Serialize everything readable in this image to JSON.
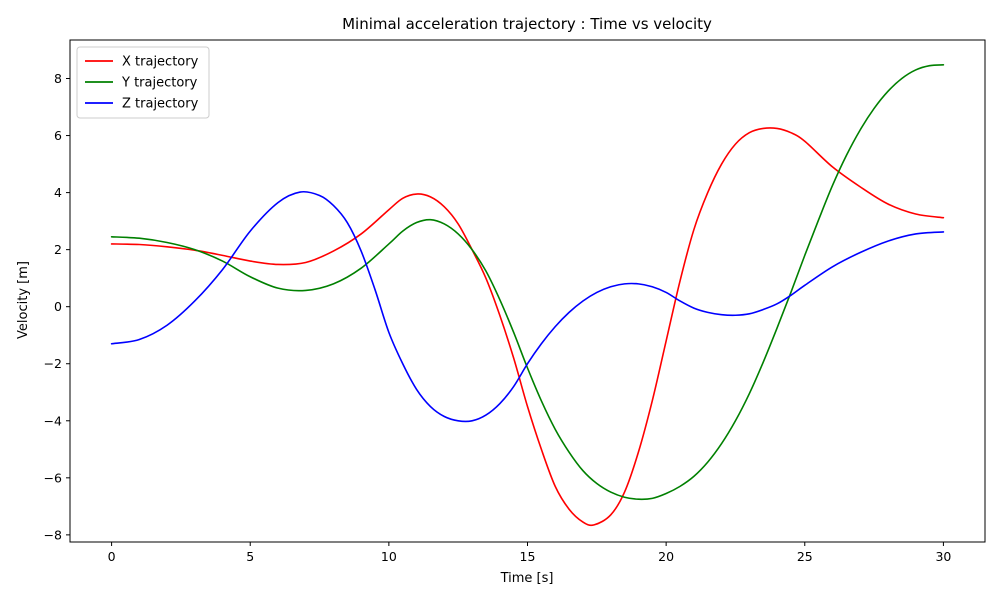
{
  "chart_data": {
    "type": "line",
    "title": "Minimal acceleration trajectory : Time vs velocity",
    "xlabel": "Time [s]",
    "ylabel": "Velocity [m]",
    "xlim": [
      -1.5,
      31.5
    ],
    "ylim": [
      -8.25,
      9.35
    ],
    "xticks": [
      0,
      5,
      10,
      15,
      20,
      25,
      30
    ],
    "yticks": [
      -8,
      -6,
      -4,
      -2,
      0,
      2,
      4,
      6,
      8
    ],
    "grid": false,
    "legend_position": "top-left",
    "series": [
      {
        "name": "X trajectory",
        "color": "#ff0000",
        "x": [
          0,
          1,
          2,
          3,
          4,
          5,
          6,
          7,
          8,
          9,
          10,
          10.5,
          11,
          11.5,
          12,
          12.5,
          13,
          13.5,
          14,
          14.5,
          15,
          15.5,
          16,
          16.5,
          17,
          17.4,
          18,
          18.5,
          19,
          19.5,
          20,
          20.5,
          21,
          21.5,
          22,
          22.5,
          23,
          23.5,
          24,
          24.5,
          25,
          26,
          27,
          28,
          29,
          30
        ],
        "y": [
          2.2,
          2.18,
          2.1,
          1.98,
          1.8,
          1.6,
          1.48,
          1.55,
          1.95,
          2.55,
          3.4,
          3.8,
          3.95,
          3.85,
          3.5,
          2.9,
          2.0,
          1.0,
          -0.3,
          -1.8,
          -3.5,
          -5.0,
          -6.3,
          -7.1,
          -7.55,
          -7.65,
          -7.3,
          -6.5,
          -5.1,
          -3.3,
          -1.2,
          0.9,
          2.7,
          4.0,
          5.0,
          5.7,
          6.1,
          6.25,
          6.25,
          6.1,
          5.8,
          4.9,
          4.2,
          3.6,
          3.25,
          3.12
        ]
      },
      {
        "name": "Y trajectory",
        "color": "#008000",
        "x": [
          0,
          1,
          2,
          3,
          4,
          5,
          6,
          7,
          8,
          9,
          10,
          10.5,
          11,
          11.5,
          12,
          12.5,
          13,
          13.5,
          14,
          14.5,
          15,
          15.5,
          16,
          16.5,
          17,
          17.5,
          18,
          18.5,
          19,
          19.5,
          20,
          20.5,
          21,
          21.5,
          22,
          22.5,
          23,
          23.5,
          24,
          24.5,
          25,
          25.5,
          26,
          26.5,
          27,
          27.5,
          28,
          28.5,
          29,
          29.5,
          30
        ],
        "y": [
          2.45,
          2.4,
          2.25,
          2.0,
          1.6,
          1.05,
          0.65,
          0.57,
          0.8,
          1.35,
          2.2,
          2.65,
          2.95,
          3.05,
          2.9,
          2.55,
          2.0,
          1.25,
          0.25,
          -0.9,
          -2.15,
          -3.3,
          -4.3,
          -5.1,
          -5.75,
          -6.2,
          -6.5,
          -6.68,
          -6.75,
          -6.72,
          -6.55,
          -6.3,
          -5.95,
          -5.45,
          -4.8,
          -4.0,
          -3.05,
          -1.95,
          -0.75,
          0.5,
          1.8,
          3.05,
          4.25,
          5.3,
          6.2,
          6.95,
          7.55,
          8.0,
          8.3,
          8.45,
          8.48
        ]
      },
      {
        "name": "Z trajectory",
        "color": "#0000ff",
        "x": [
          0,
          1,
          2,
          3,
          4,
          5,
          6,
          6.8,
          7.5,
          8,
          8.5,
          9,
          9.5,
          10,
          10.5,
          11,
          11.5,
          12,
          12.5,
          13,
          13.5,
          14,
          14.5,
          15,
          15.5,
          16,
          16.5,
          17,
          17.5,
          18,
          18.5,
          19,
          19.5,
          20,
          20.5,
          21,
          21.5,
          22,
          22.5,
          23,
          23.5,
          24,
          24.5,
          25,
          26,
          27,
          28,
          29,
          30
        ],
        "y": [
          -1.3,
          -1.15,
          -0.65,
          0.2,
          1.3,
          2.65,
          3.65,
          4.02,
          3.9,
          3.55,
          2.95,
          1.95,
          0.6,
          -0.9,
          -2.0,
          -2.9,
          -3.5,
          -3.85,
          -4.0,
          -4.0,
          -3.8,
          -3.4,
          -2.8,
          -2.0,
          -1.3,
          -0.7,
          -0.2,
          0.2,
          0.5,
          0.7,
          0.8,
          0.8,
          0.7,
          0.5,
          0.2,
          -0.05,
          -0.2,
          -0.28,
          -0.3,
          -0.25,
          -0.1,
          0.1,
          0.4,
          0.75,
          1.4,
          1.9,
          2.3,
          2.55,
          2.62
        ]
      }
    ]
  }
}
